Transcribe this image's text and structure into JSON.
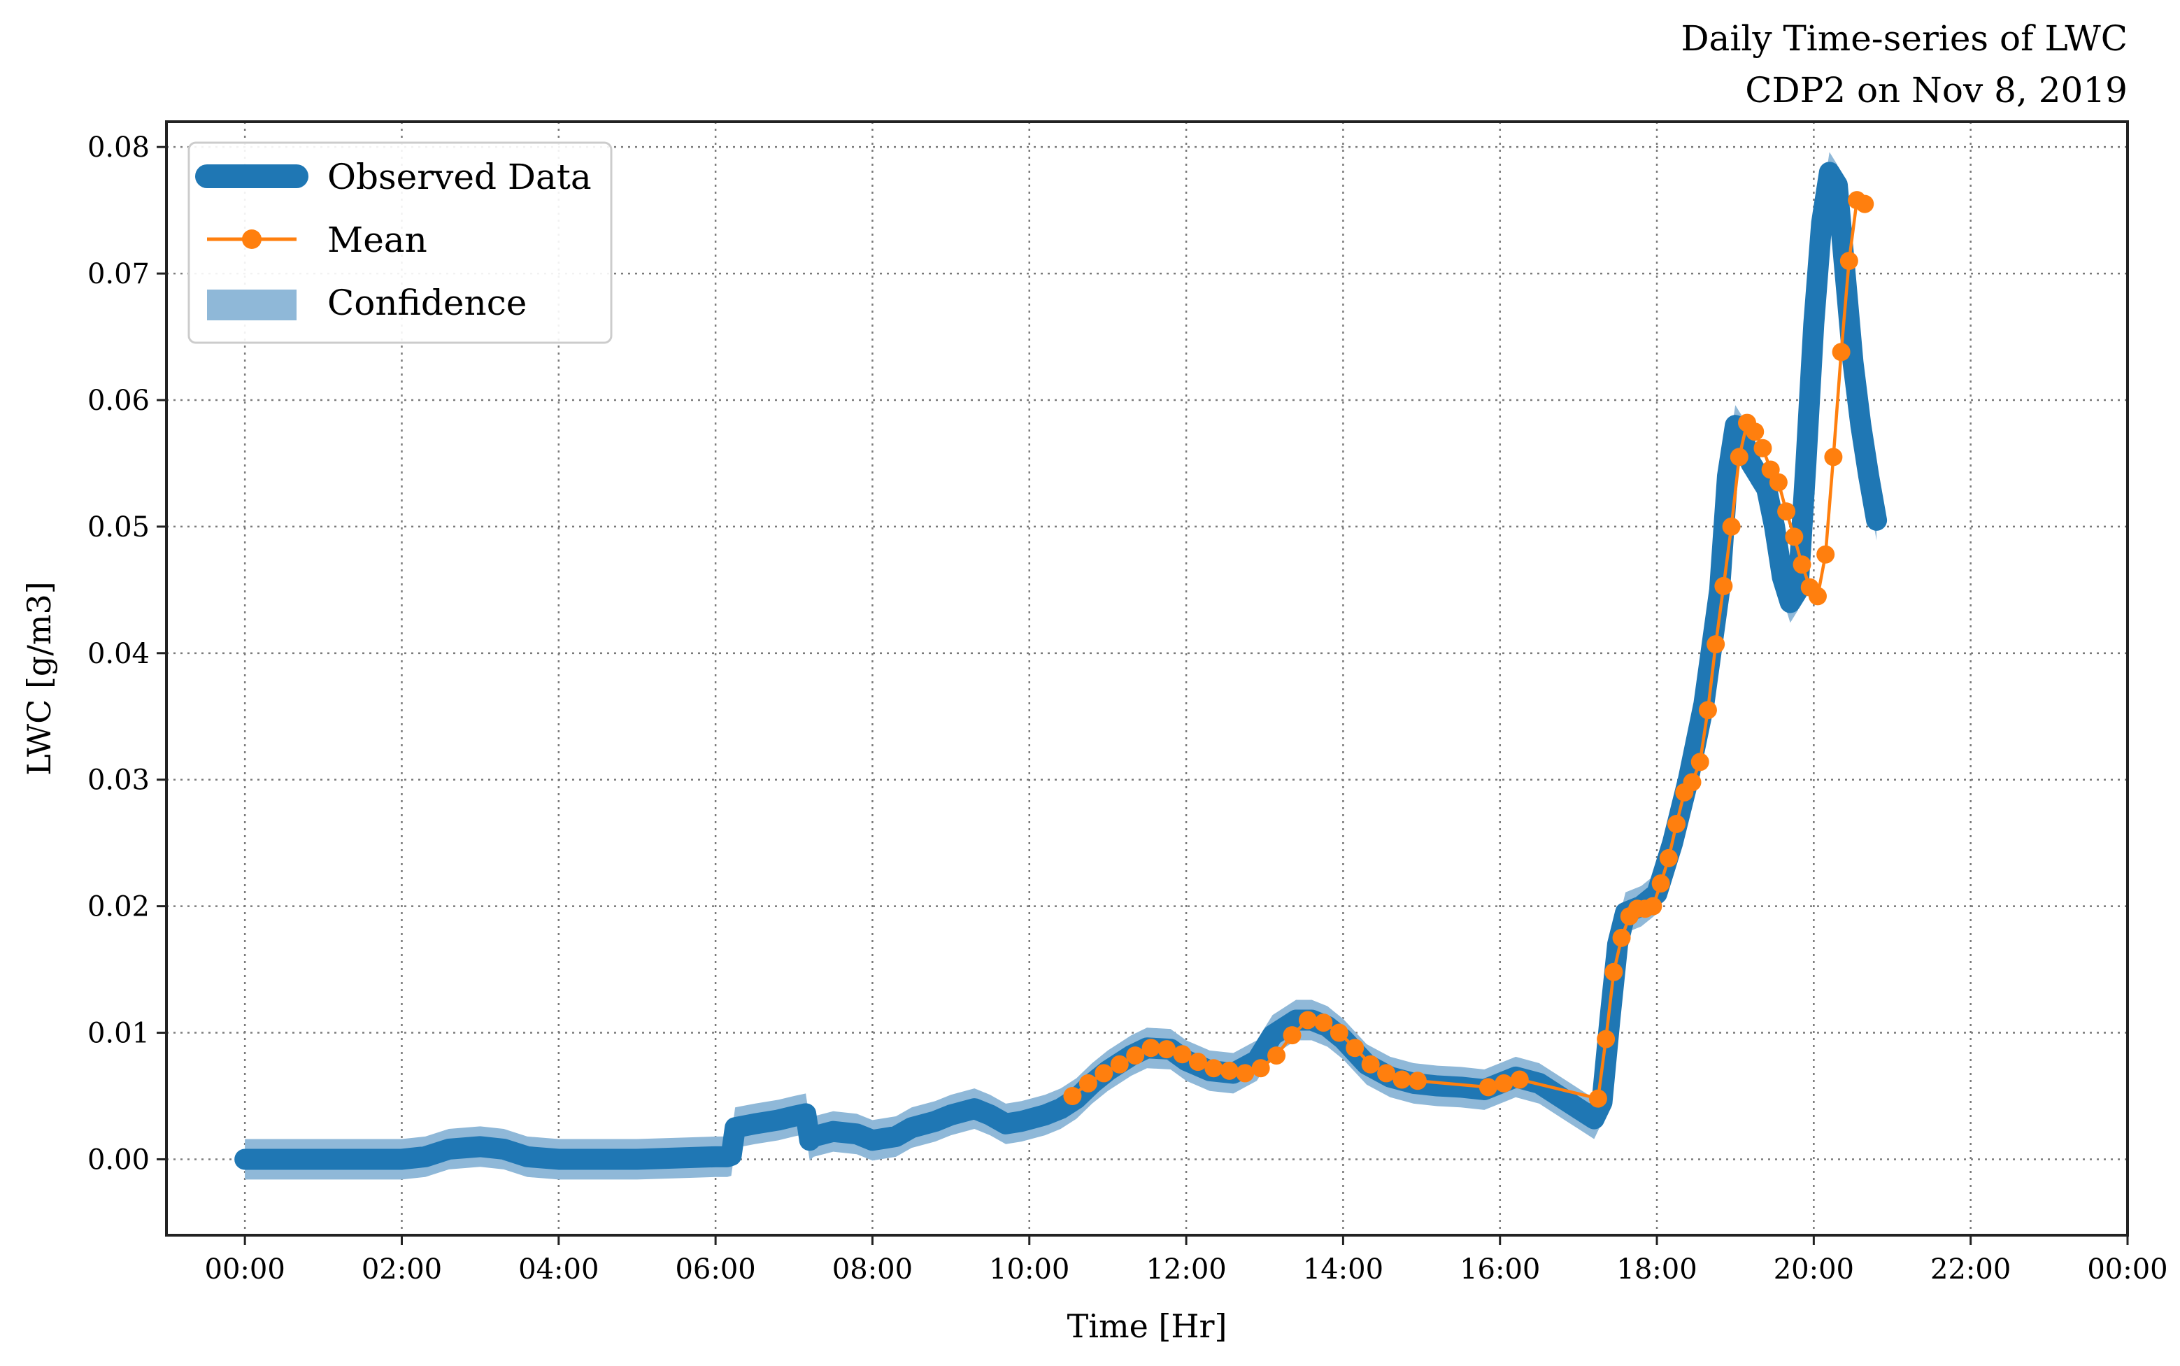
{
  "chart_data": {
    "type": "line",
    "title_lines": [
      "Daily Time-series of LWC",
      "CDP2 on Nov 8, 2019"
    ],
    "xlabel": "Time [Hr]",
    "ylabel": "LWC [g/m3]",
    "xlim": [
      -1,
      24
    ],
    "ylim": [
      -0.006,
      0.082
    ],
    "x_ticks": [
      0,
      2,
      4,
      6,
      8,
      10,
      12,
      14,
      16,
      18,
      20,
      22,
      24
    ],
    "x_tick_labels": [
      "00:00",
      "02:00",
      "04:00",
      "06:00",
      "08:00",
      "10:00",
      "12:00",
      "14:00",
      "16:00",
      "18:00",
      "20:00",
      "22:00",
      "00:00"
    ],
    "y_ticks": [
      0.0,
      0.01,
      0.02,
      0.03,
      0.04,
      0.05,
      0.06,
      0.07,
      0.08
    ],
    "y_tick_labels": [
      "0.00",
      "0.01",
      "0.02",
      "0.03",
      "0.04",
      "0.05",
      "0.06",
      "0.07",
      "0.08"
    ],
    "grid": true,
    "legend_position": "top-left",
    "legend": [
      {
        "label": "Observed Data",
        "kind": "thick-line"
      },
      {
        "label": "Mean",
        "kind": "line-marker"
      },
      {
        "label": "Confidence",
        "kind": "patch"
      }
    ],
    "colors": {
      "observed": "#1f77b4",
      "mean": "#ff7f0e",
      "confidence": "#8fb8d8"
    },
    "confidence_halfwidth": 0.0016,
    "series": [
      {
        "name": "Observed Data",
        "x": [
          0,
          0.5,
          1,
          1.5,
          2,
          2.3,
          2.6,
          3,
          3.3,
          3.6,
          4,
          4.5,
          5,
          5.5,
          6,
          6.15,
          6.2,
          6.25,
          6.5,
          6.8,
          7.0,
          7.15,
          7.2,
          7.25,
          7.5,
          7.8,
          8.0,
          8.3,
          8.5,
          8.8,
          9.0,
          9.3,
          9.5,
          9.7,
          9.9,
          10.2,
          10.4,
          10.6,
          10.8,
          11.0,
          11.3,
          11.5,
          11.8,
          12.0,
          12.3,
          12.6,
          12.9,
          13.1,
          13.4,
          13.6,
          13.8,
          14.0,
          14.3,
          14.6,
          14.9,
          15.2,
          15.5,
          15.8,
          16.0,
          16.2,
          16.5,
          16.8,
          17.0,
          17.2,
          17.3,
          17.4,
          17.5,
          17.6,
          17.8,
          18.0,
          18.2,
          18.4,
          18.6,
          18.8,
          18.9,
          19.0,
          19.1,
          19.2,
          19.3,
          19.4,
          19.5,
          19.6,
          19.7,
          19.8,
          19.9,
          20.0,
          20.1,
          20.2,
          20.3,
          20.4,
          20.5,
          20.6,
          20.7,
          20.8
        ],
        "y": [
          0.0,
          0.0,
          0.0,
          0.0,
          0.0,
          0.0002,
          0.0008,
          0.001,
          0.0008,
          0.0002,
          0.0,
          0.0,
          0.0,
          0.0001,
          0.0002,
          0.0002,
          0.0003,
          0.0025,
          0.0028,
          0.0031,
          0.0034,
          0.0036,
          0.0015,
          0.0018,
          0.0022,
          0.002,
          0.0015,
          0.0018,
          0.0025,
          0.003,
          0.0035,
          0.004,
          0.0035,
          0.0028,
          0.003,
          0.0035,
          0.004,
          0.0048,
          0.006,
          0.007,
          0.0082,
          0.0088,
          0.0087,
          0.0078,
          0.007,
          0.0068,
          0.0078,
          0.0098,
          0.011,
          0.011,
          0.0105,
          0.0095,
          0.0075,
          0.0065,
          0.006,
          0.0058,
          0.0057,
          0.0055,
          0.006,
          0.0065,
          0.006,
          0.0048,
          0.004,
          0.0032,
          0.0045,
          0.011,
          0.017,
          0.0195,
          0.02,
          0.021,
          0.025,
          0.03,
          0.036,
          0.045,
          0.054,
          0.058,
          0.057,
          0.055,
          0.054,
          0.053,
          0.05,
          0.046,
          0.044,
          0.045,
          0.055,
          0.066,
          0.074,
          0.078,
          0.077,
          0.07,
          0.063,
          0.058,
          0.054,
          0.0505
        ]
      },
      {
        "name": "Mean",
        "x": [
          10.55,
          10.75,
          10.95,
          11.15,
          11.35,
          11.55,
          11.75,
          11.95,
          12.15,
          12.35,
          12.55,
          12.75,
          12.95,
          13.15,
          13.35,
          13.55,
          13.75,
          13.95,
          14.15,
          14.35,
          14.55,
          14.75,
          14.95,
          15.85,
          16.05,
          16.25,
          17.25,
          17.35,
          17.45,
          17.55,
          17.65,
          17.75,
          17.85,
          17.95,
          18.05,
          18.15,
          18.25,
          18.35,
          18.45,
          18.55,
          18.65,
          18.75,
          18.85,
          18.95,
          19.05,
          19.15,
          19.25,
          19.35,
          19.45,
          19.55,
          19.65,
          19.75,
          19.85,
          19.95,
          20.05,
          20.15,
          20.25,
          20.35,
          20.45,
          20.55,
          20.65
        ],
        "y": [
          0.005,
          0.006,
          0.0068,
          0.0075,
          0.0082,
          0.0088,
          0.0087,
          0.0083,
          0.0077,
          0.0072,
          0.007,
          0.0068,
          0.0072,
          0.0082,
          0.0098,
          0.011,
          0.0108,
          0.01,
          0.0088,
          0.0075,
          0.0068,
          0.0063,
          0.0062,
          0.0057,
          0.006,
          0.0063,
          0.0048,
          0.0095,
          0.0148,
          0.0175,
          0.0192,
          0.0198,
          0.0198,
          0.02,
          0.0218,
          0.0238,
          0.0265,
          0.029,
          0.0298,
          0.0314,
          0.0355,
          0.0407,
          0.0453,
          0.05,
          0.0555,
          0.0582,
          0.0575,
          0.0562,
          0.0545,
          0.0535,
          0.0512,
          0.0492,
          0.047,
          0.0452,
          0.0445,
          0.0478,
          0.0555,
          0.0638,
          0.071,
          0.0758,
          0.0755
        ]
      }
    ]
  }
}
